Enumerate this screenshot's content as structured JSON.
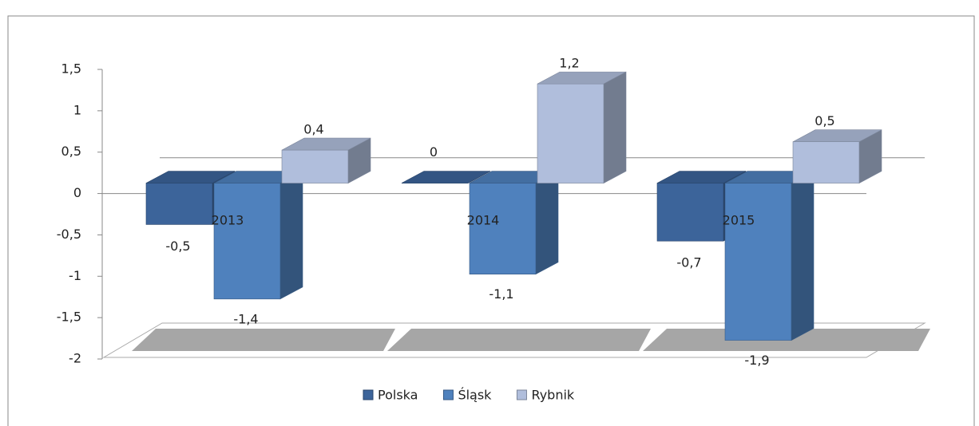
{
  "chart_data": {
    "type": "bar3d",
    "categories": [
      "2013",
      "2014",
      "2015"
    ],
    "series": [
      {
        "name": "Polska",
        "color": "#3c649a",
        "values": [
          -0.5,
          0,
          -0.7
        ],
        "value_labels": [
          "-0,5",
          "0",
          "-0,7"
        ]
      },
      {
        "name": "Śląsk",
        "color": "#4f81bd",
        "values": [
          -1.4,
          -1.1,
          -1.9
        ],
        "value_labels": [
          "-1,4",
          "-1,1",
          "-1,9"
        ]
      },
      {
        "name": "Rybnik",
        "color": "#b0bedc",
        "values": [
          0.4,
          1.2,
          0.5
        ],
        "value_labels": [
          "0,4",
          "1,2",
          "0,5"
        ]
      }
    ],
    "ylim": [
      -2,
      1.5
    ],
    "yticks": [
      {
        "value": 1.5,
        "label": "1,5"
      },
      1,
      {
        "value": 0.5,
        "label": "0,5"
      },
      0,
      {
        "value": -0.5,
        "label": "-0,5"
      },
      -1,
      {
        "value": -1.5,
        "label": "-1,5"
      },
      -2
    ],
    "legend": "bottom"
  }
}
